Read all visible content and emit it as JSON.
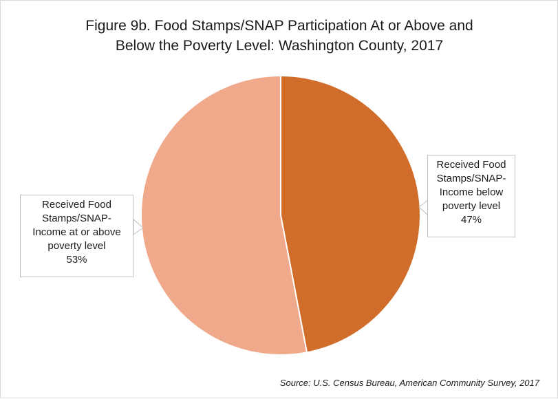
{
  "title": {
    "line1": "Figure 9b. Food Stamps/SNAP Participation At or Above and",
    "line2": "Below the Poverty Level: Washington County, 2017"
  },
  "colors": {
    "below_poverty": "#D06D2A",
    "at_or_above_poverty": "#F0A98A"
  },
  "chart_data": {
    "type": "pie",
    "title": "Figure 9b. Food Stamps/SNAP Participation At or Above and Below the Poverty Level: Washington County, 2017",
    "slices": [
      {
        "label": "Received Food Stamps/SNAP-Income below poverty level",
        "value": 47,
        "percent_label": "47%",
        "color": "#D06D2A"
      },
      {
        "label": "Received Food Stamps/SNAP-Income at or above poverty level",
        "value": 53,
        "percent_label": "53%",
        "color": "#F0A98A"
      }
    ]
  },
  "labels": {
    "below": {
      "line1": "Received Food",
      "line2": "Stamps/SNAP-",
      "line3": "Income below",
      "line4": "poverty level",
      "pct": "47%"
    },
    "above": {
      "line1": "Received Food",
      "line2": "Stamps/SNAP-",
      "line3": "Income at or above",
      "line4": "poverty level",
      "pct": "53%"
    }
  },
  "source": "Source: U.S. Census Bureau, American Community Survey, 2017"
}
